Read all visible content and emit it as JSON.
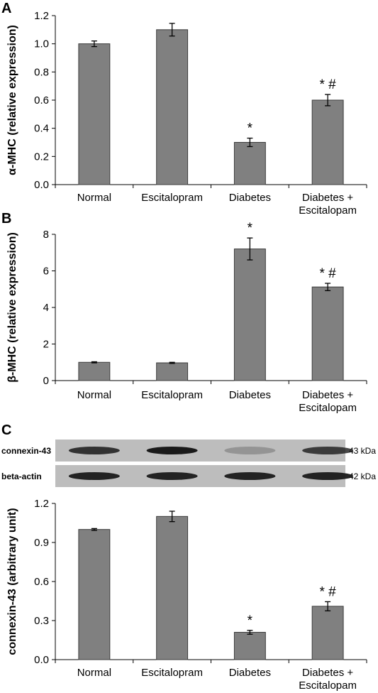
{
  "chart_data": [
    {
      "panel": "A",
      "type": "bar",
      "categories": [
        "Normal",
        "Escitalopram",
        "Diabetes",
        "Diabetes +\nEscitalopam"
      ],
      "values": [
        1.0,
        1.1,
        0.3,
        0.6
      ],
      "errors": [
        0.02,
        0.045,
        0.03,
        0.04
      ],
      "annotations": [
        "",
        "",
        "*",
        "* #"
      ],
      "ylabel": "α-MHC (relative expression)",
      "xlabel": "",
      "ylim": [
        0,
        1.2
      ],
      "yticks": [
        "0.0",
        "0.2",
        "0.4",
        "0.6",
        "0.8",
        "1.0",
        "1.2"
      ],
      "grid": false
    },
    {
      "panel": "B",
      "type": "bar",
      "categories": [
        "Normal",
        "Escitalopram",
        "Diabetes",
        "Diabetes +\nEscitalopam"
      ],
      "values": [
        1.0,
        0.97,
        7.2,
        5.12
      ],
      "errors": [
        0.03,
        0.03,
        0.6,
        0.2
      ],
      "annotations": [
        "",
        "",
        "*",
        "* #"
      ],
      "ylabel": "β-MHC (relative expression)",
      "xlabel": "",
      "ylim": [
        0,
        8
      ],
      "yticks": [
        "0",
        "2",
        "4",
        "6",
        "8"
      ],
      "grid": false
    },
    {
      "panel": "C",
      "type": "bar",
      "categories": [
        "Normal",
        "Escitalopram",
        "Diabetes",
        "Diabetes +\nEscitalopam"
      ],
      "values": [
        1.0,
        1.1,
        0.21,
        0.41
      ],
      "errors": [
        0.007,
        0.04,
        0.015,
        0.035
      ],
      "annotations": [
        "",
        "",
        "*",
        "* #"
      ],
      "ylabel": "connexin-43 (arbitrary unit)",
      "xlabel": "",
      "ylim": [
        0,
        1.2
      ],
      "yticks": [
        "0.0",
        "0.3",
        "0.6",
        "0.9",
        "1.2"
      ],
      "grid": false
    }
  ],
  "blot": {
    "rows": [
      {
        "label": "connexin-43",
        "size": "43 kDa",
        "intensity": [
          0.85,
          1.0,
          0.25,
          0.8
        ]
      },
      {
        "label": "beta-actin",
        "size": "42 kDa",
        "intensity": [
          0.95,
          0.95,
          0.95,
          0.95
        ]
      }
    ]
  },
  "colors": {
    "bar": "#808080",
    "bar_edge": "#3c3c3c",
    "axis": "#000000",
    "blot_bg": "#bdbdbd"
  }
}
